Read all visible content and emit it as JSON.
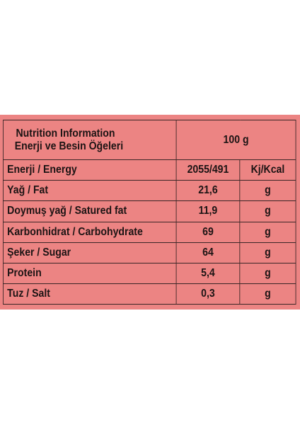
{
  "header": {
    "title_en": "Nutrition Information",
    "title_tr": "Enerji ve Besin Öğeleri",
    "portion": "100 g"
  },
  "rows": [
    {
      "label": "Enerji / Energy",
      "value": "2055/491",
      "unit": "Kj/Kcal"
    },
    {
      "label": "Yağ / Fat",
      "value": "21,6",
      "unit": "g"
    },
    {
      "label": "Doymuş yağ / Satured fat",
      "value": "11,9",
      "unit": "g"
    },
    {
      "label": "Karbonhidrat / Carbohydrate",
      "value": "69",
      "unit": "g"
    },
    {
      "label": "Şeker / Sugar",
      "value": "64",
      "unit": "g"
    },
    {
      "label": "Protein",
      "value": "5,4",
      "unit": "g"
    },
    {
      "label": "Tuz / Salt",
      "value": "0,3",
      "unit": "g"
    }
  ],
  "colors": {
    "background": "#ec8483",
    "text": "#1c1414",
    "border": "#3a2626"
  }
}
